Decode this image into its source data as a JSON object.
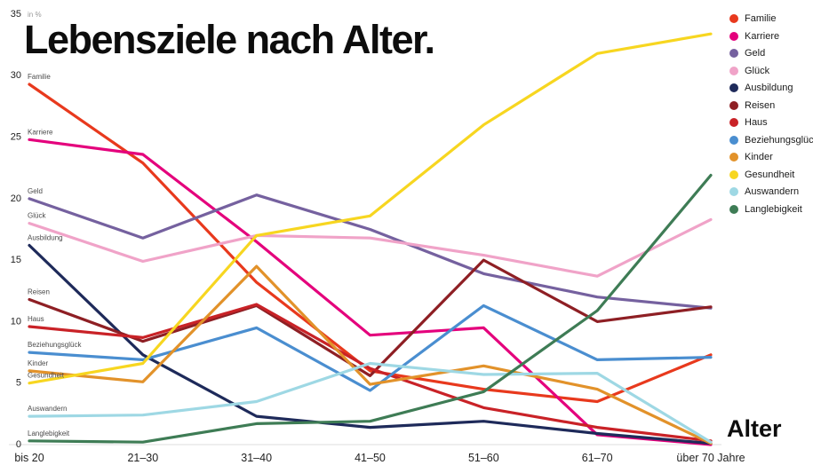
{
  "title": "Lebensziele nach Alter.",
  "y_axis": {
    "unit_label": "in %",
    "ticks": [
      0,
      5,
      10,
      15,
      20,
      25,
      30,
      35
    ]
  },
  "x_axis": {
    "label": "Alter"
  },
  "chart_data": {
    "type": "line",
    "title": "Lebensziele nach Alter.",
    "xlabel": "Alter",
    "ylabel": "in %",
    "ylim": [
      0,
      35
    ],
    "grid": false,
    "legend_position": "top-right",
    "categories": [
      "bis 20",
      "21–30",
      "31–40",
      "41–50",
      "51–60",
      "61–70",
      "über 70 Jahre"
    ],
    "series": [
      {
        "name": "Familie",
        "color": "#e8391d",
        "values": [
          29.3,
          22.9,
          13.2,
          6.0,
          4.5,
          3.5,
          7.3
        ]
      },
      {
        "name": "Karriere",
        "color": "#e4007c",
        "values": [
          24.8,
          23.6,
          16.5,
          8.9,
          9.5,
          0.8,
          0.0
        ]
      },
      {
        "name": "Geld",
        "color": "#75619f",
        "values": [
          20.0,
          16.8,
          20.3,
          17.5,
          13.9,
          12.0,
          11.1
        ]
      },
      {
        "name": "Glück",
        "color": "#f0a3c8",
        "values": [
          18.0,
          14.9,
          17.0,
          16.8,
          15.4,
          13.7,
          18.3
        ]
      },
      {
        "name": "Ausbildung",
        "color": "#1e2a5a",
        "values": [
          16.2,
          7.3,
          2.3,
          1.4,
          1.9,
          0.9,
          0.1
        ]
      },
      {
        "name": "Reisen",
        "color": "#8e1f24",
        "values": [
          11.8,
          8.4,
          11.3,
          5.6,
          15.0,
          10.0,
          11.2
        ]
      },
      {
        "name": "Haus",
        "color": "#c92227",
        "values": [
          9.6,
          8.7,
          11.4,
          6.2,
          3.0,
          1.4,
          0.3
        ]
      },
      {
        "name": "Beziehungsglück",
        "color": "#4a8ed0",
        "values": [
          7.5,
          6.9,
          9.5,
          4.4,
          11.3,
          6.9,
          7.1
        ]
      },
      {
        "name": "Kinder",
        "color": "#e2922a",
        "values": [
          6.0,
          5.1,
          14.5,
          4.9,
          6.4,
          4.5,
          0.1
        ]
      },
      {
        "name": "Gesundheit",
        "color": "#f7d620",
        "values": [
          5.0,
          6.6,
          17.0,
          18.6,
          26.0,
          31.8,
          33.4
        ]
      },
      {
        "name": "Auswandern",
        "color": "#9ed8e4",
        "values": [
          2.3,
          2.4,
          3.5,
          6.6,
          5.7,
          5.8,
          0.2
        ]
      },
      {
        "name": "Langlebigkeit",
        "color": "#3e7c55",
        "values": [
          0.3,
          0.2,
          1.7,
          1.9,
          4.3,
          10.9,
          21.9
        ]
      }
    ]
  }
}
